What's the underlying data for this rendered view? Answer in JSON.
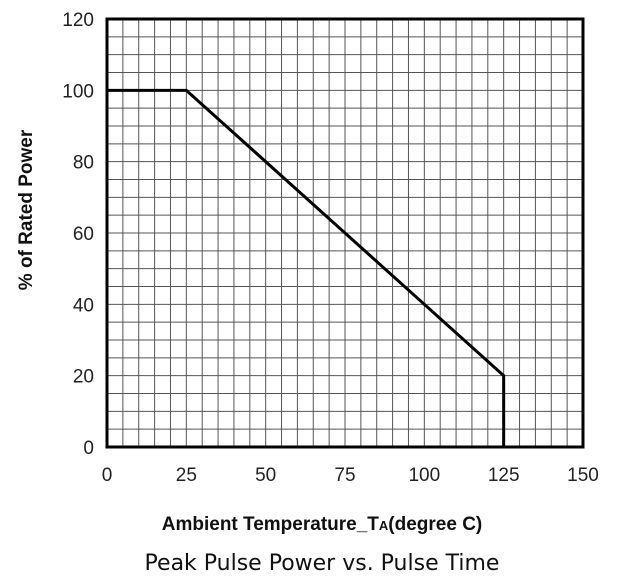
{
  "chart_data": {
    "type": "line",
    "title": "",
    "caption": "Peak Pulse Power vs. Pulse Time",
    "xlabel": "Ambient  Temperature_T",
    "xlabel_subscript": "A",
    "xlabel_suffix": "(degree C)",
    "ylabel": "% of Rated Power",
    "xlim": [
      0,
      150
    ],
    "ylim": [
      0,
      120
    ],
    "x_ticks": [
      0,
      25,
      50,
      75,
      100,
      125,
      150
    ],
    "y_ticks": [
      0,
      20,
      40,
      60,
      80,
      100,
      120
    ],
    "grid": true,
    "legend": "none",
    "series": [
      {
        "x": [
          0,
          25,
          125,
          125
        ],
        "y": [
          100,
          100,
          20,
          0
        ],
        "color": "#000000"
      }
    ]
  }
}
